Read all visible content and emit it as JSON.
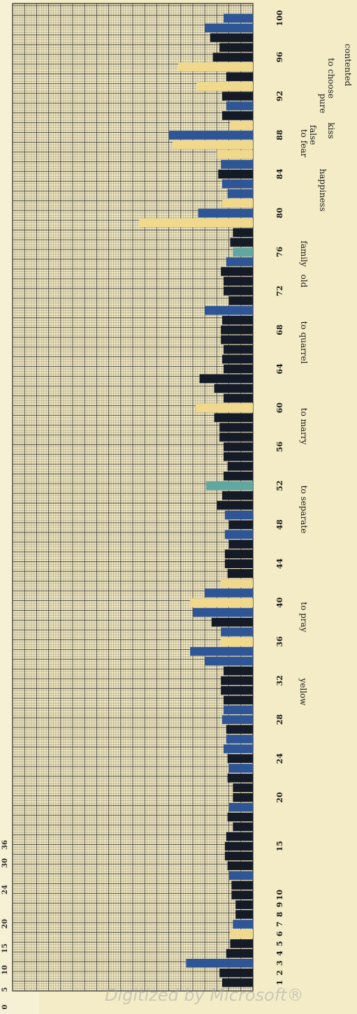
{
  "chart_data": {
    "type": "bar",
    "orientation": "horizontal, printed rotated (word labels read upside-down)",
    "grid": true,
    "x_ticks": [
      "1",
      "2",
      "3",
      "4",
      "5",
      "6",
      "7",
      "8",
      "9",
      "10",
      "15",
      "20",
      "24",
      "28",
      "32",
      "36",
      "40",
      "44",
      "48",
      "52",
      "56",
      "60",
      "64",
      "68",
      "72",
      "76",
      "80",
      "84",
      "88",
      "92",
      "96",
      "100"
    ],
    "y_ticks": [
      "0",
      "5",
      "10",
      "15",
      "20",
      "24",
      "30",
      "36"
    ],
    "ylim": [
      0,
      36
    ],
    "word_labels": [
      "yellow",
      "to pray",
      "to separate",
      "to marry",
      "to quarrel",
      "old",
      "family",
      "happiness",
      "to fear",
      "false",
      "kiss",
      "pure",
      "to choose",
      "contented"
    ],
    "colors": {
      "black": "#141a26",
      "dark_blue": "#27406e",
      "mid_blue": "#2e5596",
      "cream": "#f0d98c",
      "teal": "#5fa7a0",
      "background": "#f3ecc6",
      "grid": "#2a2a2a"
    },
    "bars": [
      {
        "x": 1,
        "value": 4.6,
        "color": "black"
      },
      {
        "x": 2,
        "value": 5.0,
        "color": "black"
      },
      {
        "x": 3,
        "value": 10.0,
        "color": "mid_blue"
      },
      {
        "x": 4,
        "value": 4.0,
        "color": "black"
      },
      {
        "x": 5,
        "value": 3.4,
        "color": "black"
      },
      {
        "x": 6,
        "value": 3.4,
        "color": "cream"
      },
      {
        "x": 7,
        "value": 3.0,
        "color": "mid_blue"
      },
      {
        "x": 8,
        "value": 2.6,
        "color": "black"
      },
      {
        "x": 9,
        "value": 2.6,
        "color": "black"
      },
      {
        "x": 10,
        "value": 3.2,
        "color": "black"
      },
      {
        "x": 11,
        "value": 3.2,
        "color": "black"
      },
      {
        "x": 12,
        "value": 3.6,
        "color": "mid_blue"
      },
      {
        "x": 13,
        "value": 3.8,
        "color": "black"
      },
      {
        "x": 14,
        "value": 4.2,
        "color": "black"
      },
      {
        "x": 15,
        "value": 4.2,
        "color": "black"
      },
      {
        "x": 16,
        "value": 4.0,
        "color": "black"
      },
      {
        "x": 17,
        "value": 3.0,
        "color": "black"
      },
      {
        "x": 18,
        "value": 3.8,
        "color": "black"
      },
      {
        "x": 19,
        "value": 3.6,
        "color": "mid_blue"
      },
      {
        "x": 20,
        "value": 3.0,
        "color": "black"
      },
      {
        "x": 21,
        "value": 3.0,
        "color": "black"
      },
      {
        "x": 22,
        "value": 3.8,
        "color": "black"
      },
      {
        "x": 23,
        "value": 3.6,
        "color": "mid_blue"
      },
      {
        "x": 24,
        "value": 3.8,
        "color": "black"
      },
      {
        "x": 25,
        "value": 4.4,
        "color": "mid_blue"
      },
      {
        "x": 26,
        "value": 4.0,
        "color": "mid_blue"
      },
      {
        "x": 27,
        "value": 4.0,
        "color": "black"
      },
      {
        "x": 28,
        "value": 4.6,
        "color": "mid_blue"
      },
      {
        "x": 29,
        "value": 4.4,
        "color": "mid_blue"
      },
      {
        "x": 30,
        "value": 4.4,
        "color": "black"
      },
      {
        "x": 31,
        "value": 4.8,
        "color": "black"
      },
      {
        "x": 32,
        "value": 4.8,
        "color": "black"
      },
      {
        "x": 33,
        "value": 4.4,
        "color": "black"
      },
      {
        "x": 34,
        "value": 7.2,
        "color": "mid_blue"
      },
      {
        "x": 35,
        "value": 9.4,
        "color": "mid_blue"
      },
      {
        "x": 36,
        "value": 4.8,
        "color": "cream"
      },
      {
        "x": 37,
        "value": 4.8,
        "color": "mid_blue"
      },
      {
        "x": 38,
        "value": 6.2,
        "color": "black"
      },
      {
        "x": 39,
        "value": 9.0,
        "color": "mid_blue"
      },
      {
        "x": 40,
        "value": 9.4,
        "color": "cream"
      },
      {
        "x": 41,
        "value": 7.2,
        "color": "mid_blue"
      },
      {
        "x": 42,
        "value": 4.8,
        "color": "cream"
      },
      {
        "x": 43,
        "value": 3.8,
        "color": "black"
      },
      {
        "x": 44,
        "value": 4.2,
        "color": "black"
      },
      {
        "x": 45,
        "value": 4.2,
        "color": "black"
      },
      {
        "x": 46,
        "value": 3.6,
        "color": "black"
      },
      {
        "x": 47,
        "value": 4.2,
        "color": "mid_blue"
      },
      {
        "x": 48,
        "value": 3.6,
        "color": "black"
      },
      {
        "x": 49,
        "value": 4.2,
        "color": "mid_blue"
      },
      {
        "x": 50,
        "value": 5.4,
        "color": "black"
      },
      {
        "x": 51,
        "value": 4.6,
        "color": "black"
      },
      {
        "x": 52,
        "value": 7.0,
        "color": "teal"
      },
      {
        "x": 53,
        "value": 4.4,
        "color": "black"
      },
      {
        "x": 54,
        "value": 3.8,
        "color": "black"
      },
      {
        "x": 55,
        "value": 4.4,
        "color": "black"
      },
      {
        "x": 56,
        "value": 4.4,
        "color": "black"
      },
      {
        "x": 57,
        "value": 5.0,
        "color": "black"
      },
      {
        "x": 58,
        "value": 5.0,
        "color": "black"
      },
      {
        "x": 59,
        "value": 5.8,
        "color": "black"
      },
      {
        "x": 60,
        "value": 8.6,
        "color": "cream"
      },
      {
        "x": 61,
        "value": 4.4,
        "color": "black"
      },
      {
        "x": 62,
        "value": 5.8,
        "color": "black"
      },
      {
        "x": 63,
        "value": 8.0,
        "color": "black"
      },
      {
        "x": 64,
        "value": 4.4,
        "color": "black"
      },
      {
        "x": 65,
        "value": 4.6,
        "color": "black"
      },
      {
        "x": 66,
        "value": 4.4,
        "color": "black"
      },
      {
        "x": 67,
        "value": 4.8,
        "color": "black"
      },
      {
        "x": 68,
        "value": 4.8,
        "color": "black"
      },
      {
        "x": 69,
        "value": 4.6,
        "color": "black"
      },
      {
        "x": 70,
        "value": 7.2,
        "color": "mid_blue"
      },
      {
        "x": 71,
        "value": 3.6,
        "color": "black"
      },
      {
        "x": 72,
        "value": 4.4,
        "color": "black"
      },
      {
        "x": 73,
        "value": 4.4,
        "color": "black"
      },
      {
        "x": 74,
        "value": 4.8,
        "color": "black"
      },
      {
        "x": 75,
        "value": 4.0,
        "color": "mid_blue"
      },
      {
        "x": 76,
        "value": 3.0,
        "color": "teal"
      },
      {
        "x": 77,
        "value": 3.4,
        "color": "black"
      },
      {
        "x": 78,
        "value": 3.0,
        "color": "black"
      },
      {
        "x": 79,
        "value": 17.0,
        "color": "cream"
      },
      {
        "x": 80,
        "value": 8.2,
        "color": "mid_blue"
      },
      {
        "x": 81,
        "value": 4.6,
        "color": "cream"
      },
      {
        "x": 82,
        "value": 3.8,
        "color": "mid_blue"
      },
      {
        "x": 83,
        "value": 4.6,
        "color": "mid_blue"
      },
      {
        "x": 84,
        "value": 5.2,
        "color": "black"
      },
      {
        "x": 85,
        "value": 4.8,
        "color": "mid_blue"
      },
      {
        "x": 86,
        "value": 5.4,
        "color": "cream"
      },
      {
        "x": 87,
        "value": 12.0,
        "color": "cream"
      },
      {
        "x": 88,
        "value": 12.6,
        "color": "mid_blue"
      },
      {
        "x": 89,
        "value": 3.4,
        "color": "cream"
      },
      {
        "x": 90,
        "value": 4.6,
        "color": "black"
      },
      {
        "x": 91,
        "value": 4.0,
        "color": "mid_blue"
      },
      {
        "x": 92,
        "value": 4.6,
        "color": "black"
      },
      {
        "x": 93,
        "value": 8.4,
        "color": "cream"
      },
      {
        "x": 94,
        "value": 4.0,
        "color": "black"
      },
      {
        "x": 95,
        "value": 11.2,
        "color": "cream"
      },
      {
        "x": 96,
        "value": 6.0,
        "color": "black"
      },
      {
        "x": 97,
        "value": 5.0,
        "color": "black"
      },
      {
        "x": 98,
        "value": 6.4,
        "color": "black"
      },
      {
        "x": 99,
        "value": 7.2,
        "color": "mid_blue"
      },
      {
        "x": 100,
        "value": 4.4,
        "color": "mid_blue"
      }
    ]
  },
  "watermark": "Digitized by Microsoft®"
}
